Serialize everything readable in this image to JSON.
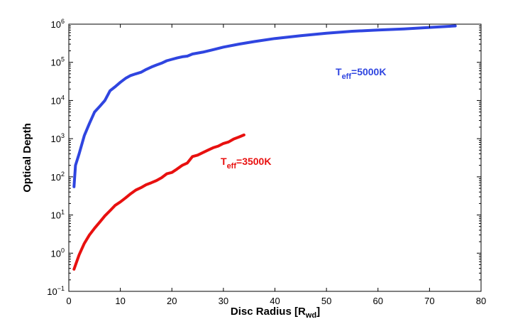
{
  "chart_data": {
    "type": "line",
    "title": "",
    "xlabel": "Disc Radius [R",
    "xlabel_sub": "wd",
    "xlabel_close": "]",
    "ylabel": "Optical Depth",
    "xlim": [
      0,
      80
    ],
    "ylim": [
      0.1,
      1000000
    ],
    "yscale": "log",
    "grid": false,
    "x_ticks": [
      0,
      10,
      20,
      30,
      40,
      50,
      60,
      70,
      80
    ],
    "x_tick_labels": [
      "0",
      "10",
      "20",
      "30",
      "40",
      "50",
      "60",
      "70",
      "80"
    ],
    "y_ticks": [
      0.1,
      1,
      10,
      100,
      1000,
      10000,
      100000,
      1000000
    ],
    "y_tick_base": "10",
    "y_tick_exponents": [
      "−1",
      "0",
      "1",
      "2",
      "3",
      "4",
      "5",
      "6"
    ],
    "series": [
      {
        "label_main": "T",
        "label_sub": "eff",
        "label_rest": "=5000K",
        "color": "#2f45e0",
        "x": [
          1,
          1.3,
          2,
          3,
          4,
          5,
          6,
          7,
          8,
          9,
          10,
          11,
          12,
          13,
          14,
          15,
          16,
          17,
          18,
          19,
          20,
          21,
          22,
          23,
          24,
          26,
          28,
          30,
          33,
          36,
          40,
          45,
          50,
          55,
          60,
          65,
          70,
          75
        ],
        "y": [
          55,
          200,
          400,
          1200,
          2500,
          5000,
          7000,
          10000,
          18000,
          23000,
          30000,
          38000,
          45000,
          50000,
          55000,
          65000,
          75000,
          85000,
          95000,
          110000,
          120000,
          130000,
          140000,
          145000,
          165000,
          185000,
          215000,
          250000,
          300000,
          350000,
          420000,
          500000,
          580000,
          650000,
          700000,
          750000,
          820000,
          900000
        ]
      },
      {
        "label_main": "T",
        "label_sub": "eff",
        "label_rest": "=3500K",
        "color": "#e8100f",
        "x": [
          1,
          2,
          3,
          4,
          5,
          6,
          7,
          8,
          9,
          10,
          11,
          12,
          13,
          14,
          15,
          16,
          17,
          18,
          19,
          20,
          21,
          22,
          23,
          24,
          25,
          26,
          27,
          28,
          29,
          30,
          31,
          32,
          33,
          34
        ],
        "y": [
          0.38,
          0.9,
          1.8,
          3.0,
          4.5,
          6.5,
          9.5,
          13,
          18,
          22,
          28,
          36,
          45,
          52,
          62,
          70,
          80,
          95,
          120,
          130,
          160,
          200,
          230,
          340,
          370,
          430,
          500,
          580,
          640,
          750,
          820,
          980,
          1100,
          1250
        ]
      }
    ]
  }
}
